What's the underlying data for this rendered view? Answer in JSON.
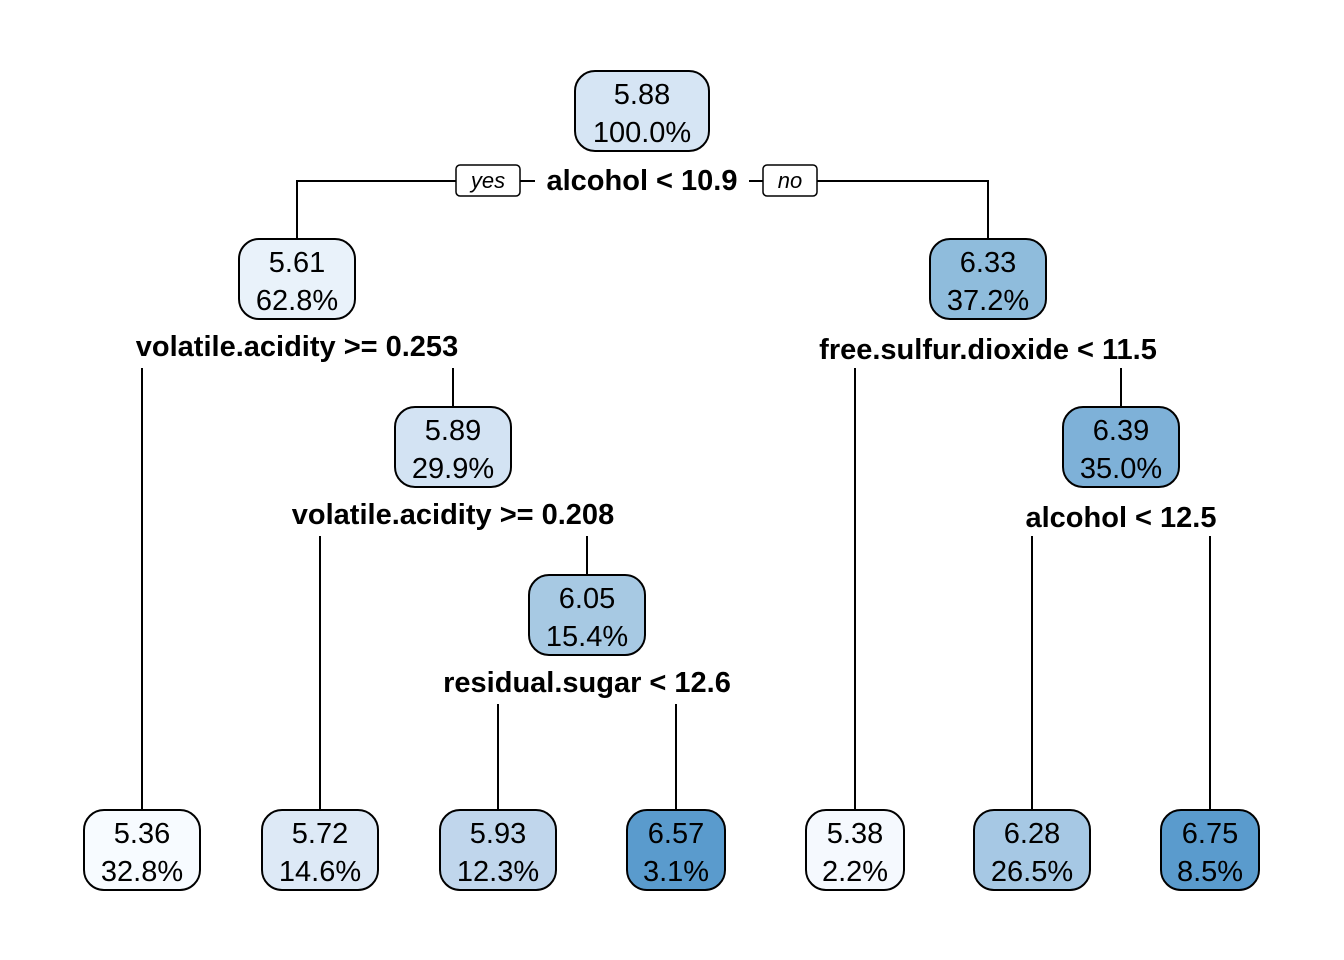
{
  "tree": {
    "branch_labels": {
      "yes": "yes",
      "no": "no"
    },
    "nodes": [
      {
        "id": "root",
        "value": "5.88",
        "percent": "100.0%",
        "fill": "#d6e5f4"
      },
      {
        "id": "n2",
        "value": "5.61",
        "percent": "62.8%",
        "fill": "#e9f2fa"
      },
      {
        "id": "n3",
        "value": "6.33",
        "percent": "37.2%",
        "fill": "#8fbcdc"
      },
      {
        "id": "n5",
        "value": "5.89",
        "percent": "29.9%",
        "fill": "#d3e3f3"
      },
      {
        "id": "n7",
        "value": "6.39",
        "percent": "35.0%",
        "fill": "#7eb1d8"
      },
      {
        "id": "n11",
        "value": "6.05",
        "percent": "15.4%",
        "fill": "#a7c9e3"
      },
      {
        "id": "leaf1",
        "value": "5.36",
        "percent": "32.8%",
        "fill": "#f7fbff"
      },
      {
        "id": "leaf2",
        "value": "5.72",
        "percent": "14.6%",
        "fill": "#dde9f6"
      },
      {
        "id": "leaf3",
        "value": "5.93",
        "percent": "12.3%",
        "fill": "#c0d6ec"
      },
      {
        "id": "leaf4",
        "value": "6.57",
        "percent": "3.1%",
        "fill": "#5a9bcd"
      },
      {
        "id": "leaf5",
        "value": "5.38",
        "percent": "2.2%",
        "fill": "#f5f9fe"
      },
      {
        "id": "leaf6",
        "value": "6.28",
        "percent": "26.5%",
        "fill": "#a6c8e4"
      },
      {
        "id": "leaf7",
        "value": "6.75",
        "percent": "8.5%",
        "fill": "#5a9bcd"
      }
    ],
    "splits": [
      {
        "id": "root",
        "label": "alcohol < 10.9"
      },
      {
        "id": "n2",
        "label": "volatile.acidity >= 0.253"
      },
      {
        "id": "n3",
        "label": "free.sulfur.dioxide < 11.5"
      },
      {
        "id": "n5",
        "label": "volatile.acidity >= 0.208"
      },
      {
        "id": "n7",
        "label": "alcohol < 12.5"
      },
      {
        "id": "n11",
        "label": "residual.sugar < 12.6"
      }
    ]
  }
}
